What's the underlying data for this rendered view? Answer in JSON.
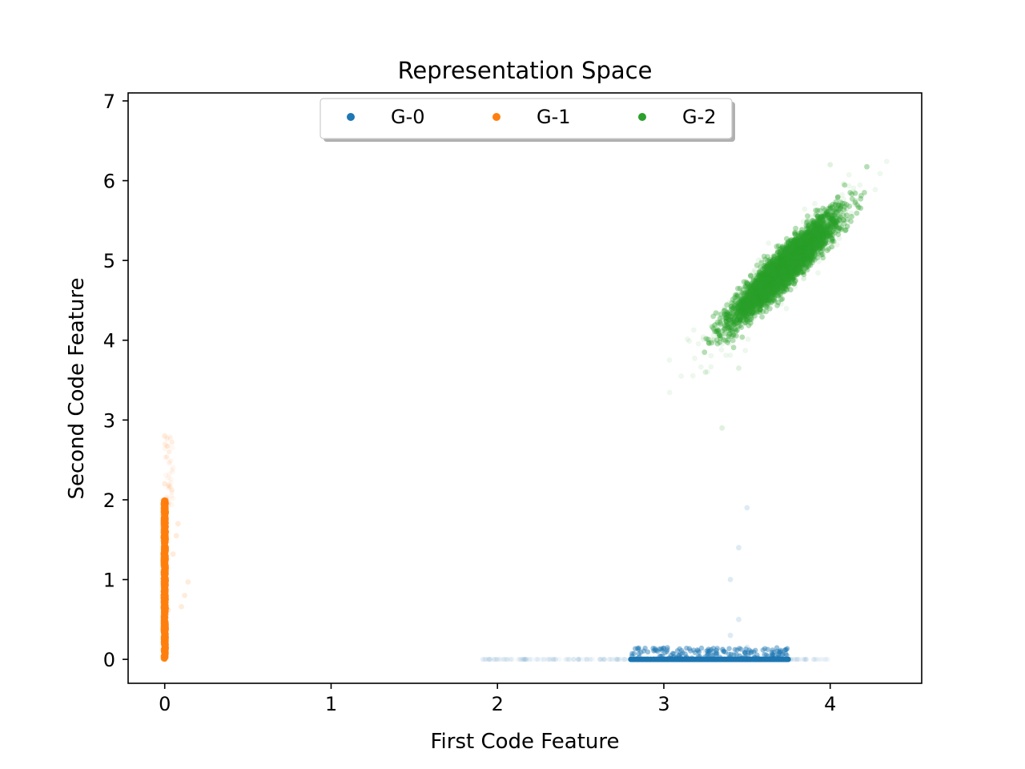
{
  "chart_data": {
    "type": "scatter",
    "title": "Representation Space",
    "xlabel": "First Code Feature",
    "ylabel": "Second Code Feature",
    "xlim": [
      -0.22,
      4.55
    ],
    "ylim": [
      -0.3,
      7.1
    ],
    "xticks": [
      0,
      1,
      2,
      3,
      4
    ],
    "yticks": [
      0,
      1,
      2,
      3,
      4,
      5,
      6,
      7
    ],
    "grid": false,
    "legend": {
      "placement": "top-center",
      "columns": 3
    },
    "series": [
      {
        "name": "G-0",
        "color": "#1f77b4",
        "distribution": {
          "shape": "horizontal band",
          "x_center": 3.3,
          "x_range": [
            2.8,
            3.75
          ],
          "y_value": 0.0,
          "y_jitter_max": 0.15
        },
        "sample_points": [
          [
            3.0,
            0.0
          ],
          [
            3.1,
            0.02
          ],
          [
            3.25,
            0.1
          ],
          [
            3.35,
            0.12
          ],
          [
            3.45,
            0.05
          ],
          [
            3.5,
            0.15
          ],
          [
            3.4,
            0.3
          ],
          [
            3.45,
            0.5
          ],
          [
            3.4,
            1.0
          ],
          [
            3.45,
            1.4
          ],
          [
            3.5,
            1.9
          ]
        ]
      },
      {
        "name": "G-1",
        "color": "#ff7f0e",
        "distribution": {
          "shape": "vertical band",
          "x_value": 0.0,
          "x_jitter_max": 0.02,
          "y_range": [
            0.0,
            2.0
          ]
        },
        "sample_points": [
          [
            0.0,
            0.0
          ],
          [
            0.0,
            0.6
          ],
          [
            0.02,
            0.62
          ],
          [
            0.05,
            1.32
          ],
          [
            0.14,
            0.97
          ],
          [
            0.12,
            0.8
          ],
          [
            0.1,
            0.66
          ],
          [
            0.07,
            1.55
          ],
          [
            0.08,
            1.7
          ],
          [
            0.0,
            2.2
          ],
          [
            0.0,
            2.8
          ]
        ]
      },
      {
        "name": "G-2",
        "color": "#2ca02c",
        "distribution": {
          "shape": "correlated ellipse",
          "x_center": 3.72,
          "y_center": 4.9,
          "x_sd": 0.15,
          "y_sd": 0.32,
          "correlation": 0.93
        },
        "sample_points": [
          [
            3.35,
            4.25
          ],
          [
            3.5,
            4.5
          ],
          [
            3.7,
            4.85
          ],
          [
            3.9,
            5.2
          ],
          [
            4.1,
            5.65
          ],
          [
            4.15,
            5.75
          ],
          [
            3.3,
            4.0
          ],
          [
            3.45,
            3.65
          ],
          [
            3.25,
            3.6
          ],
          [
            4.0,
            6.2
          ],
          [
            3.35,
            2.9
          ]
        ]
      }
    ]
  }
}
